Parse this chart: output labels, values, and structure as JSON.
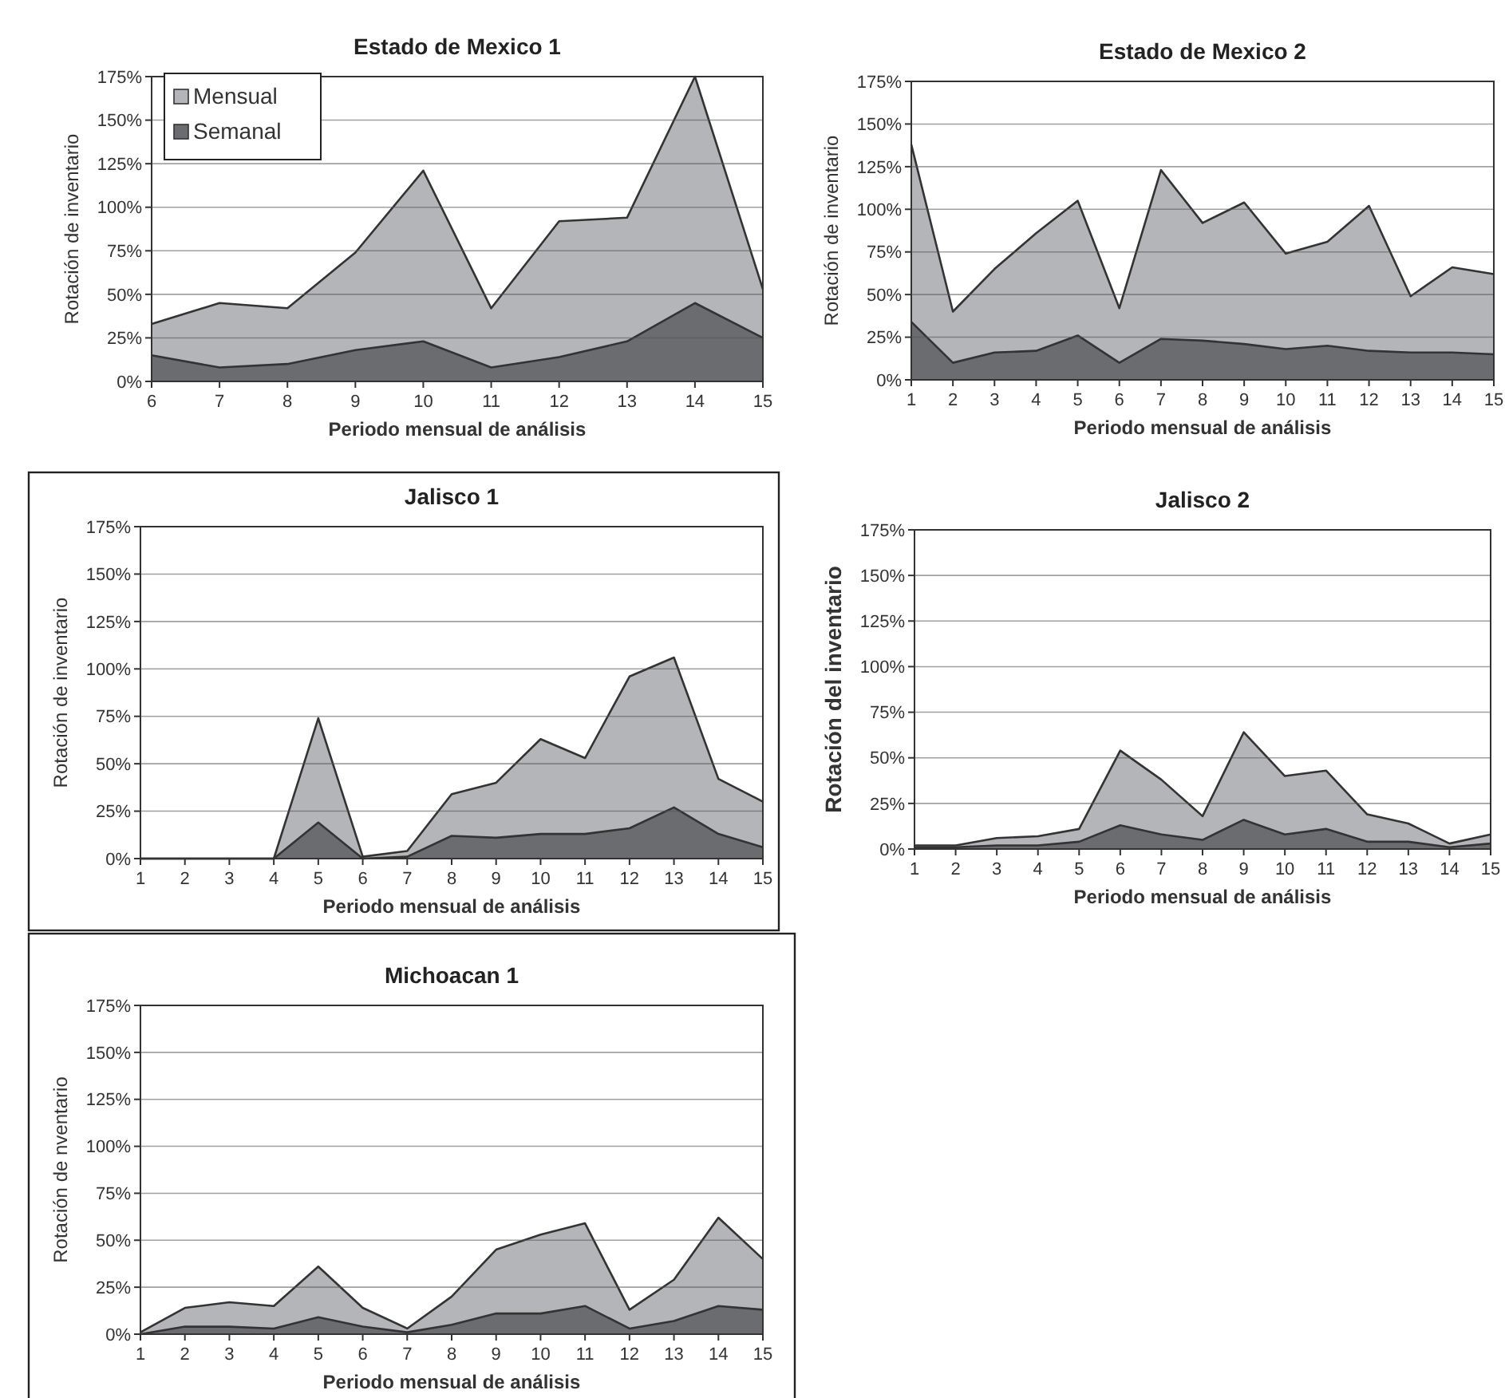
{
  "chart_data": [
    {
      "type": "area",
      "title": "Estado de Mexico 1",
      "xlabel": "Periodo mensual de análisis",
      "ylabel": "Rotación de inventario",
      "x": [
        6,
        7,
        8,
        9,
        10,
        11,
        12,
        13,
        14,
        15
      ],
      "xlim": [
        6,
        15
      ],
      "xticks": [
        6,
        7,
        8,
        9,
        10,
        11,
        12,
        13,
        14,
        15
      ],
      "ylim": [
        0,
        175
      ],
      "yticks": [
        {
          "value": 0,
          "label": "0%"
        },
        {
          "value": 25,
          "label": "25%"
        },
        {
          "value": 50,
          "label": "50%"
        },
        {
          "value": 75,
          "label": "75%"
        },
        {
          "value": 100,
          "label": "100%"
        },
        {
          "value": 125,
          "label": "125%"
        },
        {
          "value": 150,
          "label": "150%"
        },
        {
          "value": 175,
          "label": "175%"
        }
      ],
      "grid": "y",
      "legend": "top left",
      "series": [
        {
          "name": "Mensual",
          "color": "#b4b5b8",
          "values": [
            33,
            45,
            42,
            74,
            121,
            42,
            92,
            94,
            175,
            53
          ]
        },
        {
          "name": "Semanal",
          "color": "#6b6c6f",
          "values": [
            15,
            8,
            10,
            18,
            23,
            8,
            14,
            23,
            45,
            25
          ]
        }
      ]
    },
    {
      "type": "area",
      "title": "Estado de Mexico 2",
      "xlabel": "Periodo mensual de análisis",
      "ylabel": "Rotación de inventario",
      "x": [
        1,
        2,
        3,
        4,
        5,
        6,
        7,
        8,
        9,
        10,
        11,
        12,
        13,
        14,
        15
      ],
      "xlim": [
        1,
        15
      ],
      "xticks": [
        1,
        2,
        3,
        4,
        5,
        6,
        7,
        8,
        9,
        10,
        11,
        12,
        13,
        14,
        15
      ],
      "ylim": [
        0,
        175
      ],
      "yticks": [
        {
          "value": 0,
          "label": "0%"
        },
        {
          "value": 25,
          "label": "25%"
        },
        {
          "value": 50,
          "label": "50%"
        },
        {
          "value": 75,
          "label": "75%"
        },
        {
          "value": 100,
          "label": "100%"
        },
        {
          "value": 125,
          "label": "125%"
        },
        {
          "value": 150,
          "label": "150%"
        },
        {
          "value": 175,
          "label": "175%"
        }
      ],
      "grid": "y",
      "series": [
        {
          "color": "#b4b5b8",
          "values": [
            138,
            40,
            65,
            86,
            105,
            42,
            123,
            92,
            104,
            74,
            81,
            102,
            49,
            66,
            62
          ]
        },
        {
          "color": "#6b6c6f",
          "values": [
            34,
            10,
            16,
            17,
            26,
            10,
            24,
            23,
            21,
            18,
            20,
            17,
            16,
            16,
            15
          ]
        }
      ]
    },
    {
      "type": "area",
      "title": "Jalisco 1",
      "xlabel": "Periodo mensual de análisis",
      "ylabel": "Rotación de inventario",
      "x": [
        1,
        2,
        3,
        4,
        5,
        6,
        7,
        8,
        9,
        10,
        11,
        12,
        13,
        14,
        15
      ],
      "xlim": [
        1,
        15
      ],
      "xticks": [
        1,
        2,
        3,
        4,
        5,
        6,
        7,
        8,
        9,
        10,
        11,
        12,
        13,
        14,
        15
      ],
      "ylim": [
        0,
        175
      ],
      "yticks": [
        {
          "value": 0,
          "label": "0%"
        },
        {
          "value": 25,
          "label": "25%"
        },
        {
          "value": 50,
          "label": "50%"
        },
        {
          "value": 75,
          "label": "75%"
        },
        {
          "value": 100,
          "label": "100%"
        },
        {
          "value": 125,
          "label": "125%"
        },
        {
          "value": 150,
          "label": "150%"
        },
        {
          "value": 175,
          "label": "175%"
        }
      ],
      "grid": "y",
      "series": [
        {
          "color": "#b4b5b8",
          "values": [
            0,
            0,
            0,
            0,
            74,
            1,
            4,
            34,
            40,
            63,
            53,
            96,
            106,
            42,
            30
          ]
        },
        {
          "color": "#6b6c6f",
          "values": [
            0,
            0,
            0,
            0,
            19,
            0,
            1,
            12,
            11,
            13,
            13,
            16,
            27,
            13,
            6
          ]
        }
      ]
    },
    {
      "type": "area",
      "title": "Jalisco 2",
      "xlabel": "Periodo mensual de análisis",
      "ylabel": "Rotación del inventario",
      "x": [
        1,
        2,
        3,
        4,
        5,
        6,
        7,
        8,
        9,
        10,
        11,
        12,
        13,
        14,
        15
      ],
      "xlim": [
        1,
        15
      ],
      "xticks": [
        1,
        2,
        3,
        4,
        5,
        6,
        7,
        8,
        9,
        10,
        11,
        12,
        13,
        14,
        15
      ],
      "ylim": [
        0,
        175
      ],
      "yticks": [
        {
          "value": 0,
          "label": "0%"
        },
        {
          "value": 25,
          "label": "25%"
        },
        {
          "value": 50,
          "label": "50%"
        },
        {
          "value": 75,
          "label": "75%"
        },
        {
          "value": 100,
          "label": "100%"
        },
        {
          "value": 125,
          "label": "125%"
        },
        {
          "value": 150,
          "label": "150%"
        },
        {
          "value": 175,
          "label": "175%"
        }
      ],
      "grid": "y",
      "series": [
        {
          "color": "#b4b5b8",
          "values": [
            2,
            2,
            6,
            7,
            11,
            54,
            38,
            18,
            64,
            40,
            43,
            19,
            14,
            3,
            8
          ]
        },
        {
          "color": "#6b6c6f",
          "values": [
            1,
            1,
            2,
            2,
            4,
            13,
            8,
            5,
            16,
            8,
            11,
            4,
            4,
            1,
            3
          ]
        }
      ]
    },
    {
      "type": "area",
      "title": "Michoacan 1",
      "xlabel": "Periodo mensual de análisis",
      "ylabel": "Rotación de nventario",
      "x": [
        1,
        2,
        3,
        4,
        5,
        6,
        7,
        8,
        9,
        10,
        11,
        12,
        13,
        14,
        15
      ],
      "xlim": [
        1,
        15
      ],
      "xticks": [
        1,
        2,
        3,
        4,
        5,
        6,
        7,
        8,
        9,
        10,
        11,
        12,
        13,
        14,
        15
      ],
      "ylim": [
        0,
        175
      ],
      "yticks": [
        {
          "value": 0,
          "label": "0%"
        },
        {
          "value": 25,
          "label": "25%"
        },
        {
          "value": 50,
          "label": "50%"
        },
        {
          "value": 75,
          "label": "75%"
        },
        {
          "value": 100,
          "label": "100%"
        },
        {
          "value": 125,
          "label": "125%"
        },
        {
          "value": 150,
          "label": "150%"
        },
        {
          "value": 175,
          "label": "175%"
        }
      ],
      "grid": "y",
      "series": [
        {
          "color": "#b4b5b8",
          "values": [
            1,
            14,
            17,
            15,
            36,
            14,
            3,
            20,
            45,
            53,
            59,
            13,
            29,
            62,
            40
          ]
        },
        {
          "color": "#6b6c6f",
          "values": [
            0,
            4,
            4,
            3,
            9,
            4,
            1,
            5,
            11,
            11,
            15,
            3,
            7,
            15,
            13
          ]
        }
      ]
    }
  ]
}
